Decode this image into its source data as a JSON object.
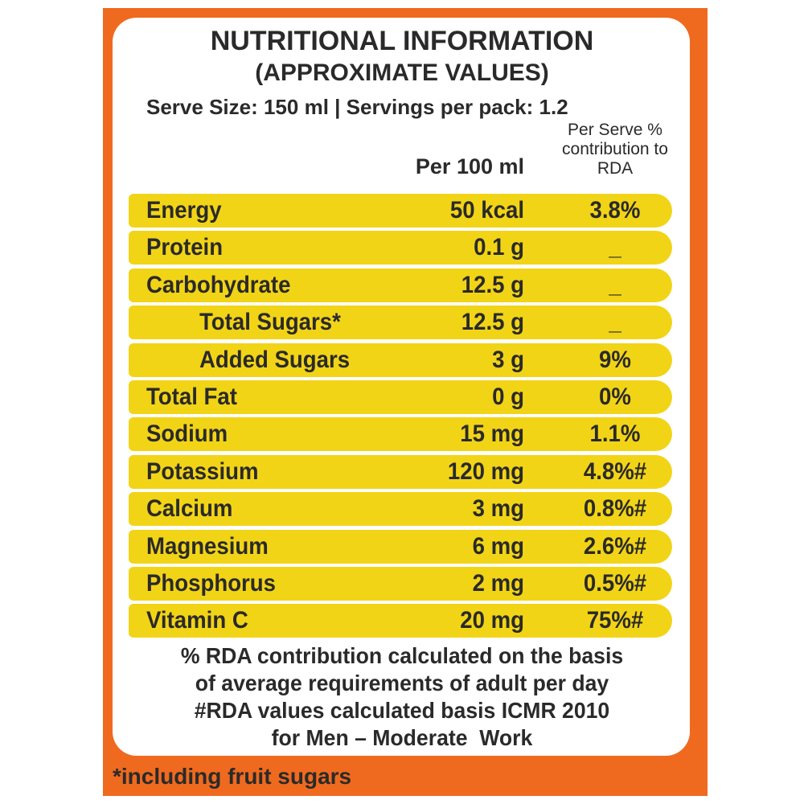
{
  "header": {
    "title": "NUTRITIONAL INFORMATION",
    "subtitle": "(APPROXIMATE VALUES)",
    "serve_info": "Serve Size: 150 ml | Servings per pack: 1.2"
  },
  "table": {
    "columns": [
      "Per 100 ml",
      "Per Serve % contribution to RDA"
    ],
    "rows": [
      [
        "Energy",
        "50 kcal",
        "3.8%"
      ],
      [
        "Protein",
        "0.1 g",
        "_"
      ],
      [
        "Carbohydrate",
        "12.5 g",
        "_"
      ],
      [
        "Total Sugars*",
        "12.5 g",
        "_"
      ],
      [
        "Added Sugars",
        "3 g",
        "9%"
      ],
      [
        "Total Fat",
        "0 g",
        "0%"
      ],
      [
        "Sodium",
        "15 mg",
        "1.1%"
      ],
      [
        "Potassium",
        "120 mg",
        "4.8%#"
      ],
      [
        "Calcium",
        "3 mg",
        "0.8%#"
      ],
      [
        "Magnesium",
        "6 mg",
        "2.6%#"
      ],
      [
        "Phosphorus",
        "2 mg",
        "0.5%#"
      ],
      [
        "Vitamin C",
        "20 mg",
        "75%#"
      ]
    ],
    "indented_rows": [
      3,
      4
    ]
  },
  "notes": [
    "% RDA contribution calculated on the basis",
    "of average requirements of adult per day",
    "#RDA values calculated basis ICMR 2010",
    "for Men – Moderate  Work"
  ],
  "footer": "*including fruit sugars"
}
